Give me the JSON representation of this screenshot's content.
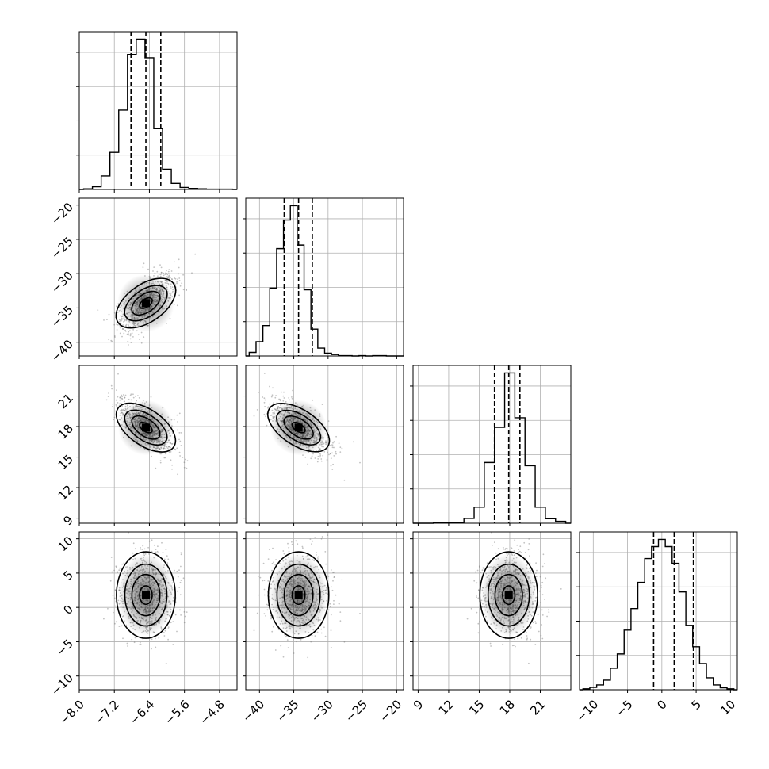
{
  "chart_data": {
    "type": "corner",
    "parameters": [
      {
        "range": [
          -8.0,
          -4.4
        ],
        "ticks": [
          -8.0,
          -7.2,
          -6.4,
          -5.6,
          -4.8
        ],
        "tick_labels": [
          "−8.0",
          "−7.2",
          "−6.4",
          "−5.6",
          "−4.8"
        ],
        "quantiles": [
          -6.82,
          -6.48,
          -6.14
        ]
      },
      {
        "range": [
          -42,
          -19
        ],
        "ticks": [
          -40,
          -35,
          -30,
          -25,
          -20
        ],
        "tick_labels": [
          "−40",
          "−35",
          "−30",
          "−25",
          "−20"
        ],
        "quantiles": [
          -36.4,
          -34.3,
          -32.3
        ]
      },
      {
        "range": [
          8.5,
          24
        ],
        "ticks": [
          9,
          12,
          15,
          18,
          21
        ],
        "tick_labels": [
          "9",
          "12",
          "15",
          "18",
          "21"
        ],
        "quantiles": [
          16.5,
          17.9,
          19.0
        ]
      },
      {
        "range": [
          -12,
          11
        ],
        "ticks": [
          -10,
          -5,
          0,
          5,
          10
        ],
        "tick_labels": [
          "−10",
          "−5",
          "0",
          "5",
          "10"
        ],
        "quantiles": [
          -1.2,
          1.8,
          4.6
        ]
      }
    ],
    "diagonal_histograms": [
      {
        "param": 0,
        "bins": [
          -7.8,
          -7.6,
          -7.4,
          -7.2,
          -7.0,
          -6.8,
          -6.6,
          -6.4,
          -6.2,
          -6.0,
          -5.8,
          -5.6,
          -5.4,
          -5.2,
          -5.0,
          -4.8,
          -4.6
        ],
        "counts": [
          2,
          8,
          40,
          110,
          235,
          400,
          445,
          390,
          180,
          60,
          18,
          6,
          3,
          2,
          1,
          1,
          1
        ]
      },
      {
        "param": 1,
        "bins": [
          -41,
          -40,
          -39,
          -38,
          -37,
          -36,
          -35,
          -34,
          -33,
          -32,
          -31,
          -30,
          -29,
          -28,
          -27,
          -26,
          -25,
          -24,
          -23,
          -22,
          -21,
          -20
        ],
        "counts": [
          10,
          40,
          85,
          190,
          300,
          380,
          420,
          310,
          185,
          75,
          22,
          8,
          4,
          1,
          1,
          0,
          1,
          0,
          1,
          1,
          0,
          0
        ]
      },
      {
        "param": 2,
        "bins": [
          9,
          10,
          11,
          12,
          13,
          14,
          15,
          16,
          17,
          18,
          19,
          20,
          21,
          22,
          23
        ],
        "counts": [
          0,
          0,
          1,
          2,
          3,
          15,
          50,
          190,
          300,
          470,
          330,
          180,
          50,
          14,
          6
        ]
      },
      {
        "param": 3,
        "bins": [
          -11,
          -10,
          -9,
          -8,
          -7,
          -6,
          -5,
          -4,
          -3,
          -2,
          -1,
          0,
          1,
          2,
          3,
          4,
          5,
          6,
          7,
          8,
          9,
          10
        ],
        "counts": [
          2,
          5,
          10,
          20,
          45,
          75,
          125,
          170,
          225,
          275,
          300,
          315,
          300,
          265,
          205,
          135,
          90,
          55,
          25,
          10,
          4,
          2
        ]
      }
    ],
    "grid": true,
    "histogram_style": "step",
    "quantile_lines": "dashed",
    "contour_levels": 4
  }
}
